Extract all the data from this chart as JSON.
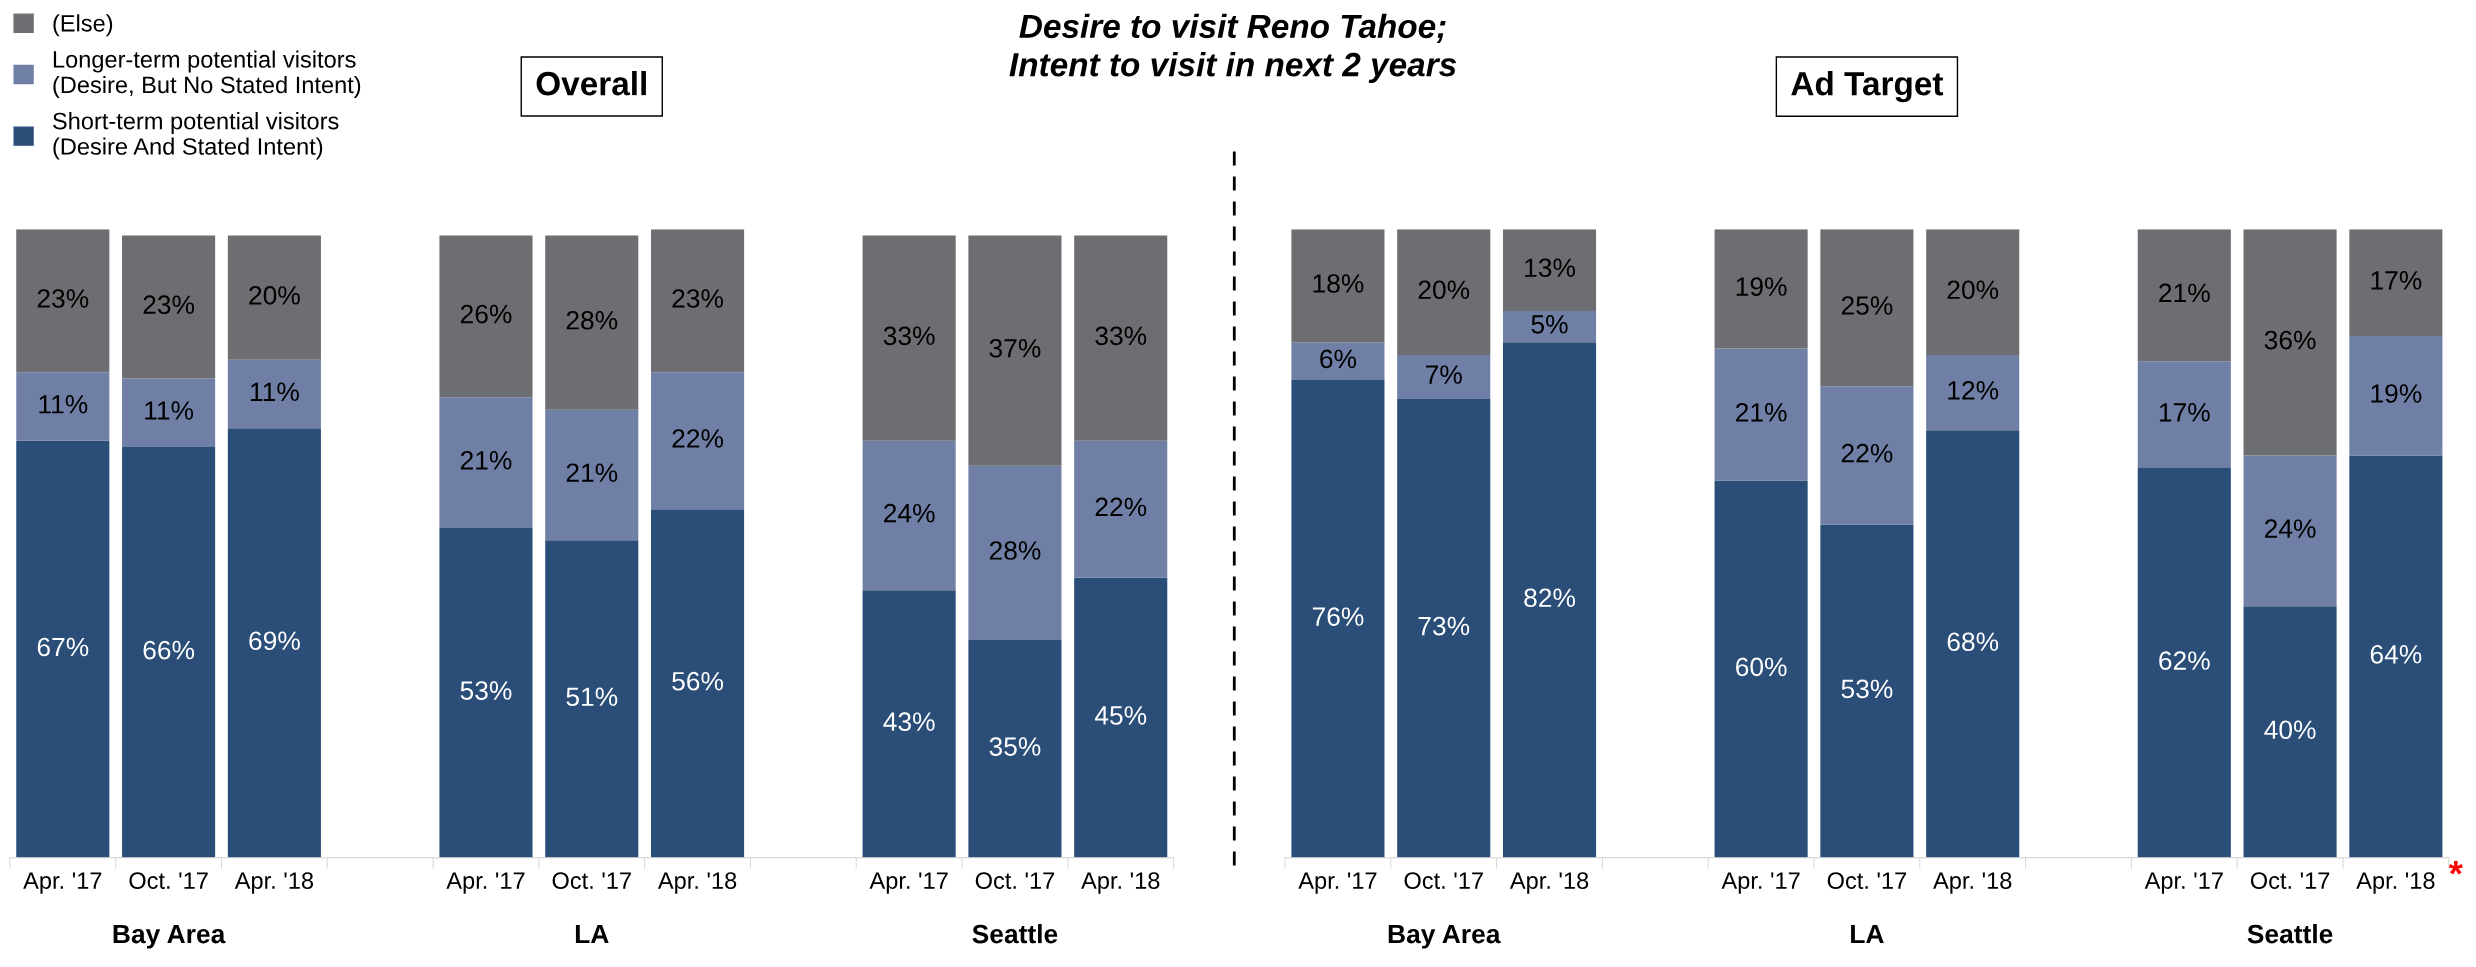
{
  "chart_data": [
    {
      "type": "bar",
      "title": "Overall",
      "stacked": true,
      "legend": "top left",
      "tick_labels": "x",
      "categories": [
        "Apr. '17",
        "Oct. '17",
        "Apr. '18",
        null,
        "Apr. '17",
        "Oct. '17",
        "Apr. '18",
        null,
        "Apr. '17",
        "Oct. '17",
        "Apr. '18"
      ],
      "series": [
        {
          "name": "Short-term potential visitors\n(Desire And Stated Intent)",
          "color": "#2b4e78",
          "values": [
            67,
            66,
            69,
            null,
            53,
            51,
            56,
            null,
            43,
            35,
            45
          ],
          "value_labels": [
            "67%",
            "66%",
            "69%",
            null,
            "53%",
            "51%",
            "56%",
            null,
            "43%",
            "35%",
            "45%"
          ]
        },
        {
          "name": "Longer-term potential visitors\n(Desire, But No Stated Intent)",
          "color": "#6f7fa5",
          "values": [
            11,
            11,
            11,
            null,
            21,
            21,
            22,
            null,
            24,
            28,
            22
          ],
          "value_labels": [
            "11%",
            "11%",
            "11%",
            null,
            "21%",
            "21%",
            "22%",
            null,
            "24%",
            "28%",
            "22%"
          ]
        },
        {
          "name": "(Else)",
          "color": "#6d6e71",
          "values": [
            23,
            23,
            20,
            null,
            26,
            28,
            23,
            null,
            33,
            37,
            33
          ],
          "value_labels": [
            "23%",
            "23%",
            "20%",
            null,
            "26%",
            "28%",
            "23%",
            null,
            "33%",
            "37%",
            "33%"
          ]
        }
      ],
      "annotations": [
        "Desire to visit Reno Tahoe;\nIntent to visit in next 2 years",
        "Bay Area",
        "LA",
        "Seattle"
      ]
    },
    {
      "type": "bar",
      "title": "Ad Target",
      "stacked": true,
      "tick_labels": "x",
      "categories": [
        "Apr. '17",
        "Oct. '17",
        "Apr. '18",
        null,
        "Apr. '17",
        "Oct. '17",
        "Apr. '18",
        null,
        "Apr. '17",
        "Oct. '17",
        "Apr. '18"
      ],
      "series": [
        {
          "color": "#2b4e78",
          "values": [
            76,
            73,
            82,
            null,
            60,
            53,
            68,
            null,
            62,
            40,
            64
          ],
          "value_labels": [
            "76%",
            "73%",
            "82%",
            null,
            "60%",
            "53%",
            "68%",
            null,
            "62%",
            "40%",
            "64%"
          ]
        },
        {
          "color": "#6f7fa5",
          "values": [
            6,
            7,
            5,
            null,
            21,
            22,
            12,
            null,
            17,
            24,
            19
          ],
          "value_labels": [
            "6%",
            "7%",
            "5%",
            null,
            "21%",
            "22%",
            "12%",
            null,
            "17%",
            "24%",
            "19%"
          ]
        },
        {
          "color": "#6d6e71",
          "values": [
            18,
            20,
            13,
            null,
            19,
            25,
            20,
            null,
            21,
            36,
            17
          ],
          "value_labels": [
            "18%",
            "20%",
            "13%",
            null,
            "19%",
            "25%",
            "20%",
            null,
            "21%",
            "36%",
            "17%"
          ]
        }
      ],
      "annotations": [
        "Bay Area",
        "LA",
        "Seattle",
        "*"
      ]
    }
  ]
}
